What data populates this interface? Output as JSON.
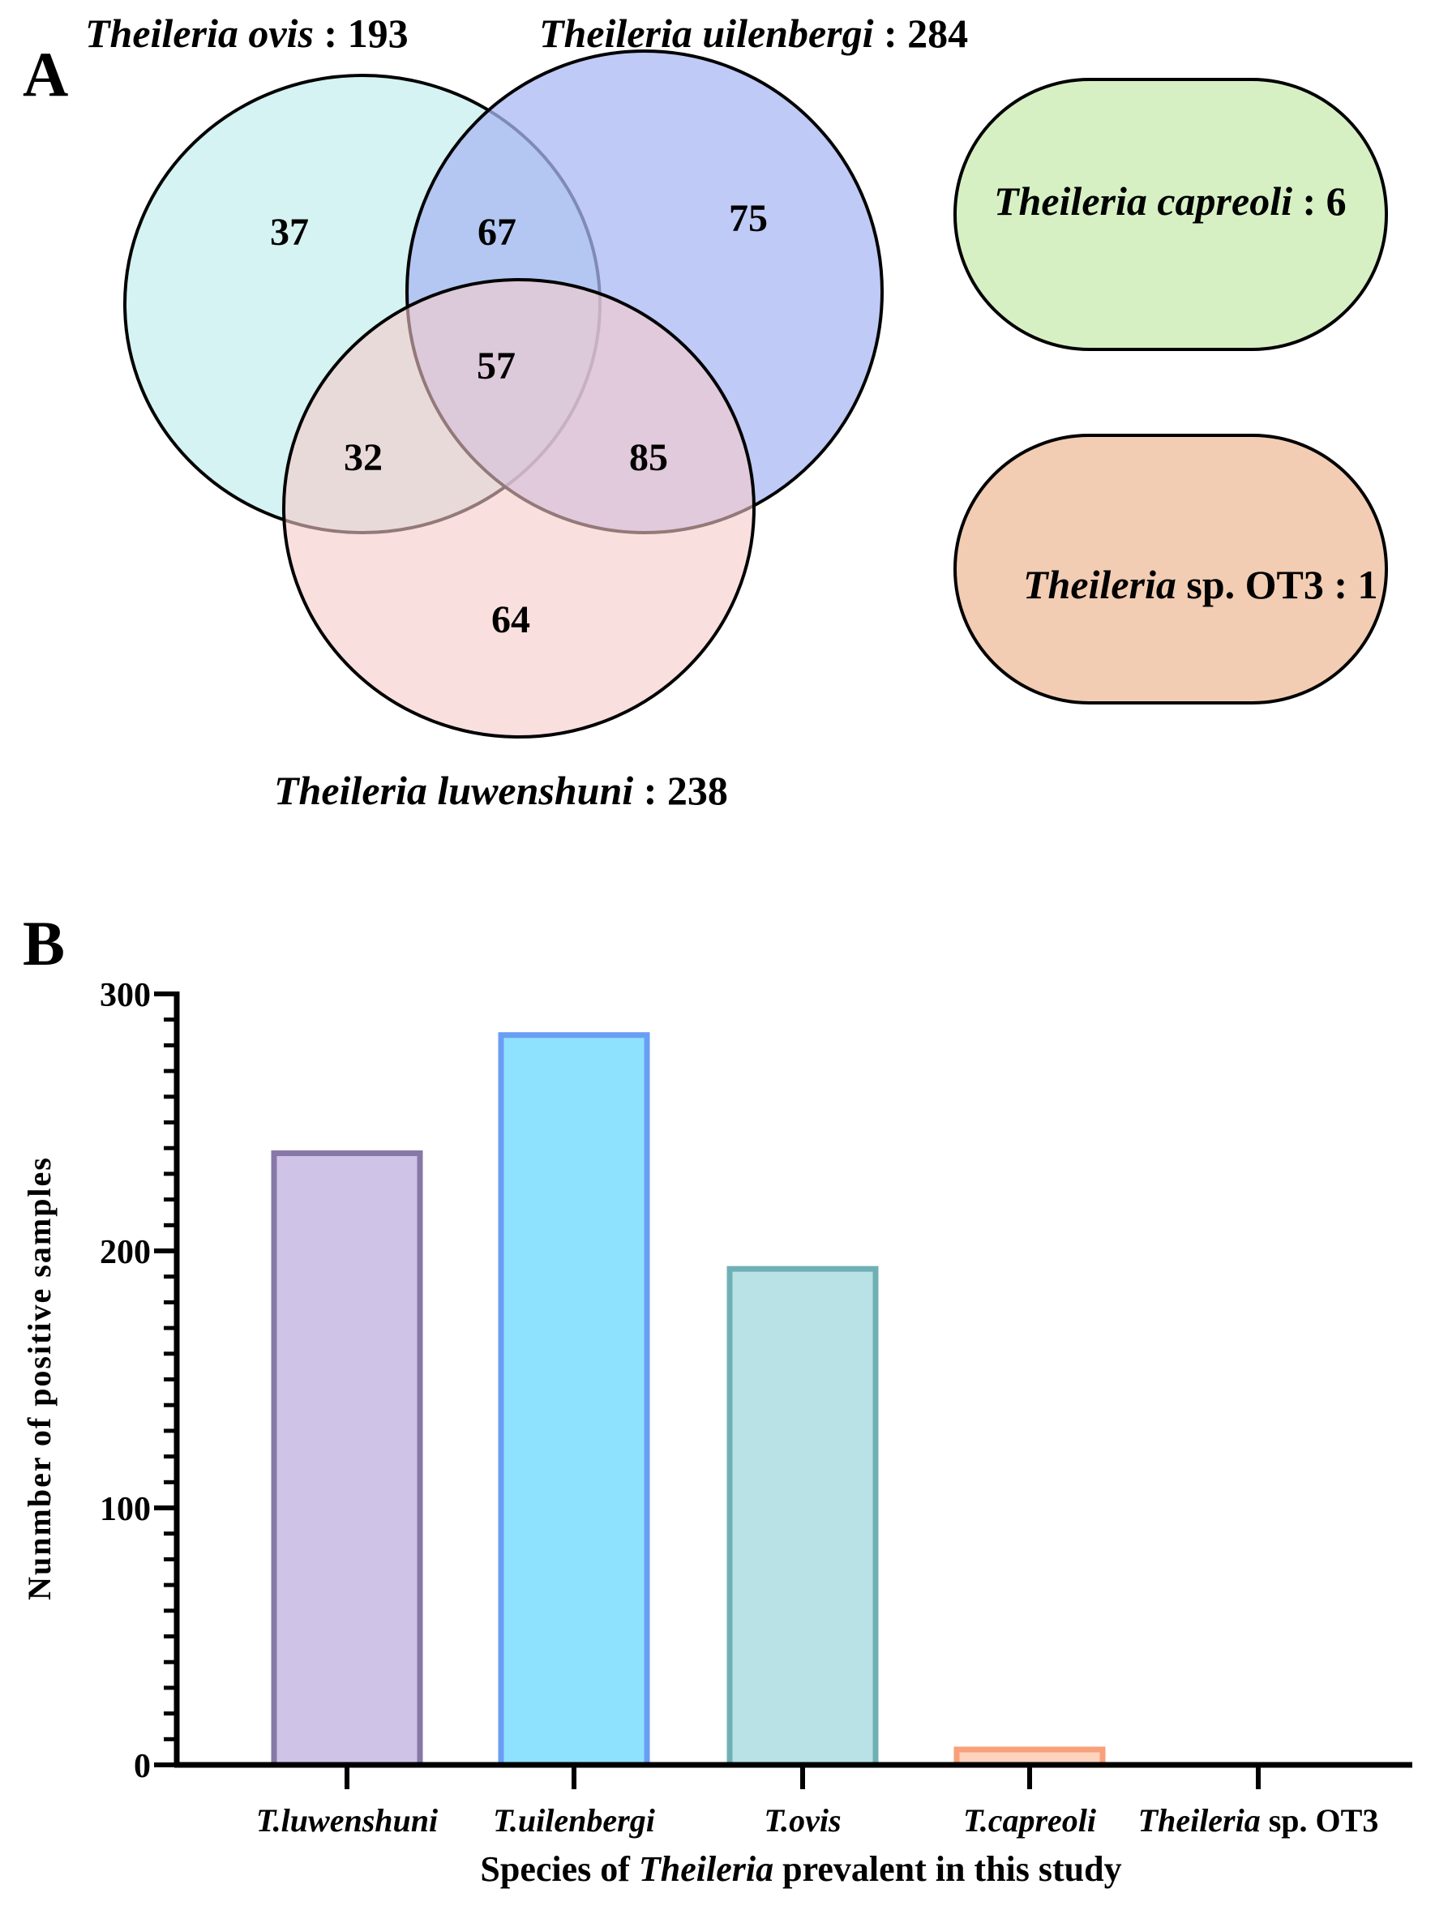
{
  "panel_a": {
    "label": "A",
    "sets": [
      {
        "name_italic": "Theileria ovis",
        "suffix": " : 193",
        "fill": "#c6efee",
        "stroke": "#000000"
      },
      {
        "name_italic": "Theileria uilenbergi",
        "suffix": " : 284",
        "fill": "#a9b8f3",
        "stroke": "#000000"
      },
      {
        "name_italic": "Theileria luwenshuni",
        "suffix": " : 238",
        "fill": "#f7c9c9",
        "stroke": "#000000"
      }
    ],
    "regions": {
      "ovis_only": "37",
      "ovis_uilenbergi": "67",
      "uilenbergi_only": "75",
      "all_three": "57",
      "ovis_luwenshuni": "32",
      "uilenbergi_luwenshuni": "85",
      "luwenshuni_only": "64"
    },
    "capreoli": {
      "name_italic": "Theileria capreoli",
      "suffix": " : 6",
      "fill": "#d6f0c4"
    },
    "ot3": {
      "name_italic": "Theileria",
      "suffix": " sp. OT3 : 1",
      "fill": "#f2cdb3"
    }
  },
  "chart_data": {
    "type": "bar",
    "panel_label": "B",
    "categories": [
      "T.luwenshuni",
      "T.uilenbergi",
      "T.ovis",
      "T.capreoli",
      "Theileria sp. OT3"
    ],
    "category_labels": [
      {
        "italic": "T.luwenshuni",
        "plain": ""
      },
      {
        "italic": "T.uilenbergi",
        "plain": ""
      },
      {
        "italic": "T.ovis",
        "plain": ""
      },
      {
        "italic": "T.capreoli",
        "plain": ""
      },
      {
        "italic": "Theileria",
        "plain": " sp. OT3"
      }
    ],
    "values": [
      238,
      284,
      193,
      6,
      1
    ],
    "colors": [
      {
        "fill": "#cfc3e8",
        "stroke": "#8878a8"
      },
      {
        "fill": "#8fe2fd",
        "stroke": "#6a9ef4"
      },
      {
        "fill": "#b8e2e5",
        "stroke": "#6fb0b5"
      },
      {
        "fill": "#fcd3bd",
        "stroke": "#f9a07a"
      },
      {
        "fill": "#f2cdb3",
        "stroke": "#e0a080"
      }
    ],
    "ylabel": "Nunmber of  positive samples",
    "xlabel_parts": [
      "Species of ",
      "Theileria",
      " prevalent in this study"
    ],
    "ylim": [
      0,
      300
    ],
    "yticks": [
      "0",
      "100",
      "200",
      "300"
    ],
    "minor_tick_step": 10,
    "grid": false
  }
}
